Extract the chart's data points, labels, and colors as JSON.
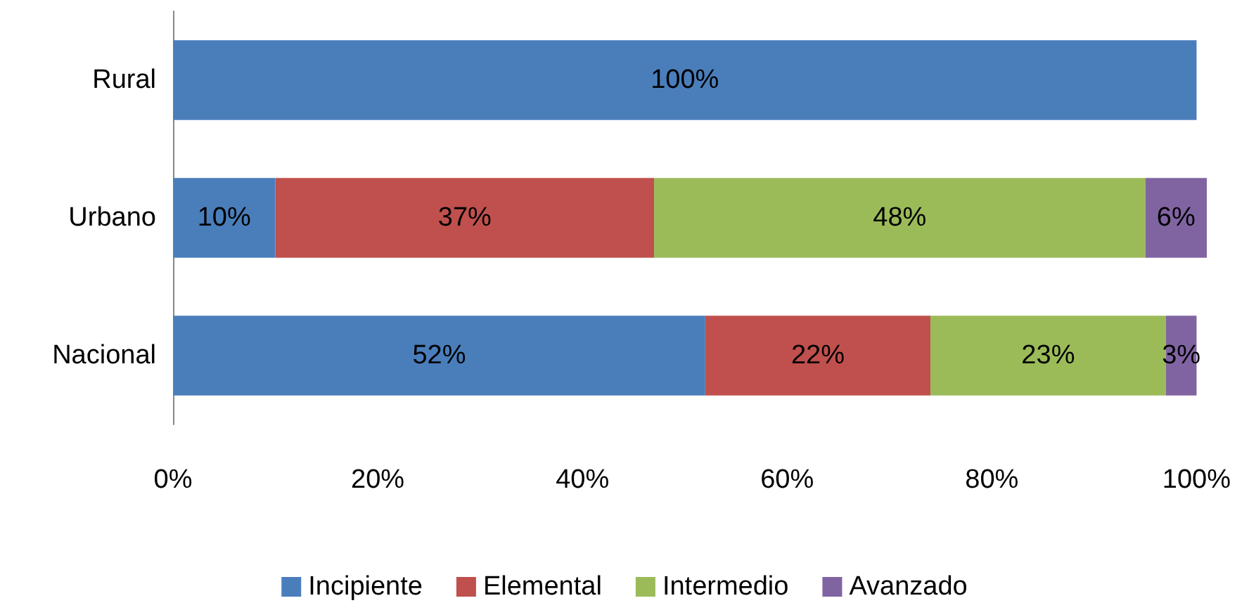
{
  "chart_data": {
    "type": "bar",
    "orientation": "horizontal",
    "stacked": true,
    "categories": [
      "Rural",
      "Urbano",
      "Nacional"
    ],
    "series": [
      {
        "name": "Incipiente",
        "color": "#4a7ebb",
        "values": [
          100,
          10,
          52
        ],
        "value_labels": [
          "100%",
          "10%",
          "52%"
        ]
      },
      {
        "name": "Elemental",
        "color": "#c0504d",
        "values": [
          null,
          37,
          22
        ],
        "value_labels": [
          null,
          "37%",
          "22%"
        ]
      },
      {
        "name": "Intermedio",
        "color": "#9bbb59",
        "values": [
          null,
          48,
          23
        ],
        "value_labels": [
          null,
          "48%",
          "23%"
        ]
      },
      {
        "name": "Avanzado",
        "color": "#8064a2",
        "values": [
          null,
          6,
          3
        ],
        "value_labels": [
          null,
          "6%",
          "3%"
        ]
      }
    ],
    "xlim": [
      0,
      101
    ],
    "xticks": [
      {
        "value": 0,
        "label": "0%"
      },
      {
        "value": 20,
        "label": "20%"
      },
      {
        "value": 40,
        "label": "40%"
      },
      {
        "value": 60,
        "label": "60%"
      },
      {
        "value": 80,
        "label": "80%"
      },
      {
        "value": 100,
        "label": "100%"
      }
    ],
    "grid": false,
    "legend": "bottom"
  }
}
